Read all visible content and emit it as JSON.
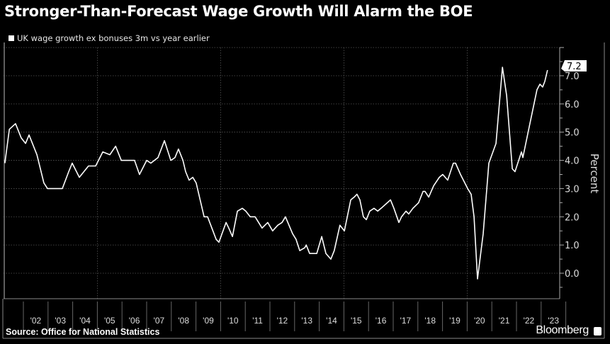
{
  "chart_data": {
    "type": "line",
    "title": "Stronger-Than-Forecast Wage Growth Will Alarm the BOE",
    "legend": [
      "UK wage growth ex bonuses 3m vs year earlier"
    ],
    "legend_position": "top-left",
    "ylabel": "Percent",
    "xlabel": "",
    "ylim": [
      -0.85,
      8.0
    ],
    "xlim": [
      2001.0,
      2023.7
    ],
    "y_ticks": [
      "0.0",
      "1.0",
      "2.0",
      "3.0",
      "4.0",
      "5.0",
      "6.0",
      "7.0"
    ],
    "y_tick_values": [
      0,
      1,
      2,
      3,
      4,
      5,
      6,
      7
    ],
    "x_tick_labels": [
      "'02",
      "'03",
      "'04",
      "'05",
      "'06",
      "'07",
      "'08",
      "'09",
      "'10",
      "'11",
      "'12",
      "'13",
      "'14",
      "'15",
      "'16",
      "'17",
      "'18",
      "'19",
      "'20",
      "'21",
      "'22",
      "'23"
    ],
    "grid": true,
    "last_value_label": "7.2",
    "last_value": 7.2,
    "series": [
      {
        "name": "UK wage growth ex bonuses 3m vs year earlier",
        "color": "#ffffff",
        "x": [
          2001.25,
          2001.43,
          2001.68,
          2001.91,
          2002.09,
          2002.23,
          2002.55,
          2002.83,
          2002.98,
          2003.26,
          2003.58,
          2003.84,
          2003.98,
          2004.27,
          2004.64,
          2004.93,
          2005.22,
          2005.51,
          2005.74,
          2005.97,
          2006.28,
          2006.51,
          2006.71,
          2007.0,
          2007.17,
          2007.46,
          2007.72,
          2007.98,
          2008.15,
          2008.29,
          2008.47,
          2008.58,
          2008.72,
          2008.87,
          2009.01,
          2009.33,
          2009.47,
          2009.82,
          2009.93,
          2010.22,
          2010.33,
          2010.48,
          2010.68,
          2010.88,
          2011.02,
          2011.2,
          2011.4,
          2011.68,
          2011.91,
          2012.11,
          2012.32,
          2012.49,
          2012.63,
          2012.92,
          2013.06,
          2013.21,
          2013.41,
          2013.47,
          2013.61,
          2013.9,
          2014.1,
          2014.27,
          2014.47,
          2014.61,
          2014.84,
          2015.02,
          2015.28,
          2015.42,
          2015.53,
          2015.65,
          2015.79,
          2015.91,
          2016.05,
          2016.22,
          2016.37,
          2016.51,
          2016.89,
          2017.03,
          2017.23,
          2017.34,
          2017.52,
          2017.63,
          2017.8,
          2018.03,
          2018.21,
          2018.29,
          2018.44,
          2018.64,
          2018.87,
          2019.01,
          2019.21,
          2019.44,
          2019.53,
          2019.73,
          2020.02,
          2020.16,
          2020.28,
          2020.42,
          2020.65,
          2020.88,
          2021.17,
          2021.43,
          2021.6,
          2021.83,
          2021.94,
          2022.2,
          2022.26,
          2022.52,
          2022.83,
          2022.95,
          2023.06,
          2023.15,
          2023.26
        ],
        "y": [
          3.9,
          5.1,
          5.3,
          4.8,
          4.6,
          4.9,
          4.2,
          3.2,
          3.0,
          3.0,
          3.0,
          3.6,
          3.9,
          3.4,
          3.8,
          3.8,
          4.3,
          4.2,
          4.5,
          4.0,
          4.0,
          4.0,
          3.5,
          4.0,
          3.9,
          4.1,
          4.7,
          4.0,
          4.1,
          4.4,
          4.0,
          3.6,
          3.3,
          3.4,
          3.2,
          2.0,
          2.0,
          1.2,
          1.1,
          1.8,
          1.6,
          1.3,
          2.2,
          2.3,
          2.2,
          2.0,
          2.0,
          1.6,
          1.8,
          1.5,
          1.7,
          1.8,
          2.0,
          1.4,
          1.2,
          0.8,
          0.9,
          1.0,
          0.7,
          0.7,
          1.3,
          0.7,
          0.5,
          0.8,
          1.7,
          1.5,
          2.6,
          2.7,
          2.8,
          2.6,
          2.0,
          1.9,
          2.2,
          2.3,
          2.2,
          2.3,
          2.6,
          2.3,
          1.8,
          2.0,
          2.2,
          2.1,
          2.3,
          2.5,
          2.9,
          2.9,
          2.7,
          3.1,
          3.4,
          3.5,
          3.3,
          3.9,
          3.9,
          3.5,
          3.0,
          2.8,
          2.0,
          -0.2,
          1.4,
          3.9,
          4.6,
          7.3,
          6.3,
          3.7,
          3.6,
          4.3,
          4.1,
          5.2,
          6.5,
          6.7,
          6.6,
          6.8,
          7.2
        ]
      }
    ]
  },
  "footer": {
    "source": "Source: Office for National Statistics",
    "brand": "Bloomberg"
  }
}
